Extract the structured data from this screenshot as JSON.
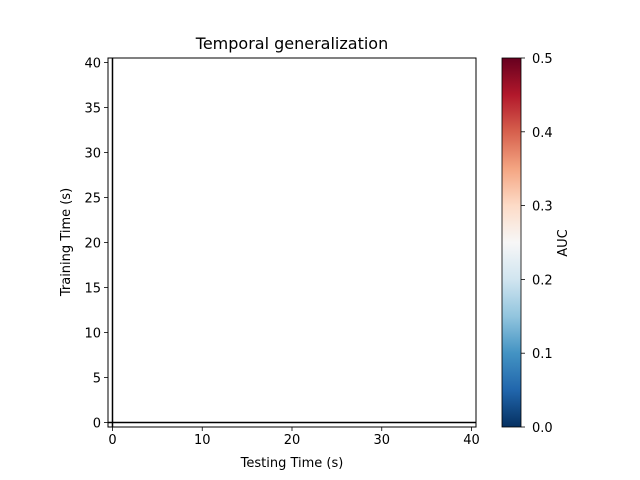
{
  "chart_data": {
    "type": "heatmap",
    "title": "Temporal generalization",
    "xlabel": "Testing Time (s)",
    "ylabel": "Training Time (s)",
    "xlim": [
      -0.5,
      40.5
    ],
    "ylim": [
      -0.5,
      40.5
    ],
    "xticks": [
      0,
      10,
      20,
      30,
      40
    ],
    "yticks": [
      0,
      5,
      10,
      15,
      20,
      25,
      30,
      35,
      40
    ],
    "vertical_lines": [
      0
    ],
    "horizontal_lines": [
      0
    ],
    "line_color": "#000000",
    "colorbar": {
      "label": "AUC",
      "range": [
        0.0,
        0.5
      ],
      "ticks": [
        0.0,
        0.1,
        0.2,
        0.3,
        0.4,
        0.5
      ],
      "tick_labels": [
        "0.0",
        "0.1",
        "0.2",
        "0.3",
        "0.4",
        "0.5"
      ],
      "colormap": "RdBu_r",
      "colormap_stops": [
        "#053061",
        "#2166ac",
        "#4393c3",
        "#92c5de",
        "#d1e5f0",
        "#f7f7f7",
        "#fddbc7",
        "#f4a582",
        "#d6604d",
        "#b2182b",
        "#67001f"
      ]
    },
    "grid": false
  }
}
